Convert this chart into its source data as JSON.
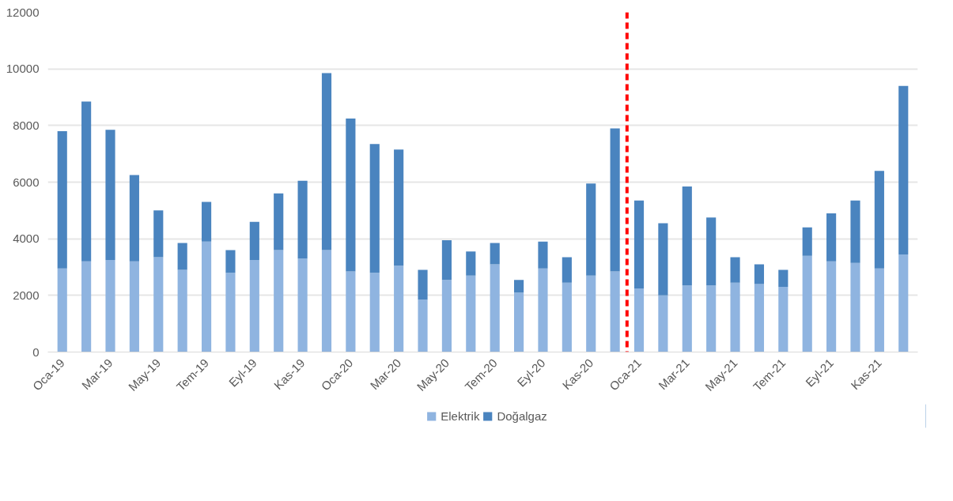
{
  "chart_data": {
    "type": "bar",
    "stacked": true,
    "categories": [
      "Oca-19",
      null,
      "Mar-19",
      null,
      "May-19",
      null,
      "Tem-19",
      null,
      "Eyl-19",
      null,
      "Kas-19",
      null,
      "Oca-20",
      null,
      "Mar-20",
      null,
      "May-20",
      null,
      "Tem-20",
      null,
      "Eyl-20",
      null,
      "Kas-20",
      null,
      "Oca-21",
      null,
      "Mar-21",
      null,
      "May-21",
      null,
      "Tem-21",
      null,
      "Eyl-21",
      null,
      "Kas-21",
      null
    ],
    "series": [
      {
        "name": "Elektrik",
        "color": "#8fb4e0",
        "values": [
          2950,
          3200,
          3250,
          3200,
          3350,
          2900,
          3900,
          2800,
          3250,
          3600,
          3300,
          3600,
          2850,
          2800,
          3050,
          1850,
          2550,
          2700,
          3100,
          2100,
          2950,
          2450,
          2700,
          2850,
          2250,
          2000,
          2350,
          2350,
          2450,
          2400,
          2300,
          3400,
          3200,
          3150,
          2950,
          3450
        ]
      },
      {
        "name": "Doğalgaz",
        "color": "#4a84bf",
        "values": [
          4850,
          5650,
          4600,
          3050,
          1650,
          950,
          1400,
          800,
          1350,
          2000,
          2750,
          6250,
          5400,
          4550,
          4100,
          1050,
          1400,
          850,
          750,
          450,
          950,
          900,
          3250,
          5050,
          3100,
          2550,
          3500,
          2400,
          900,
          700,
          600,
          1000,
          1700,
          2200,
          3450,
          5950
        ]
      }
    ],
    "ylim": [
      0,
      12000
    ],
    "yticks": [
      0,
      2000,
      4000,
      6000,
      8000,
      10000,
      12000
    ],
    "grid": "y",
    "legend": "bottom"
  }
}
